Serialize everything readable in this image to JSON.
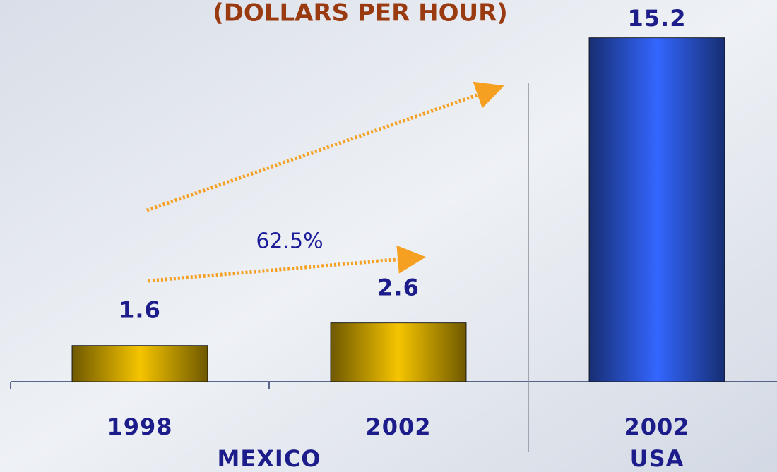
{
  "chart_data": {
    "type": "bar",
    "title": "(DOLLARS PER HOUR)",
    "categories": [
      "1998",
      "2002",
      "2002"
    ],
    "groups": [
      "MEXICO",
      "USA"
    ],
    "values": [
      1.6,
      2.6,
      15.2
    ],
    "colors": [
      "#f5c400",
      "#f5c400",
      "#3366ff"
    ],
    "ylim": [
      0,
      16
    ],
    "annotations": [
      {
        "text": "62.5%"
      }
    ]
  }
}
